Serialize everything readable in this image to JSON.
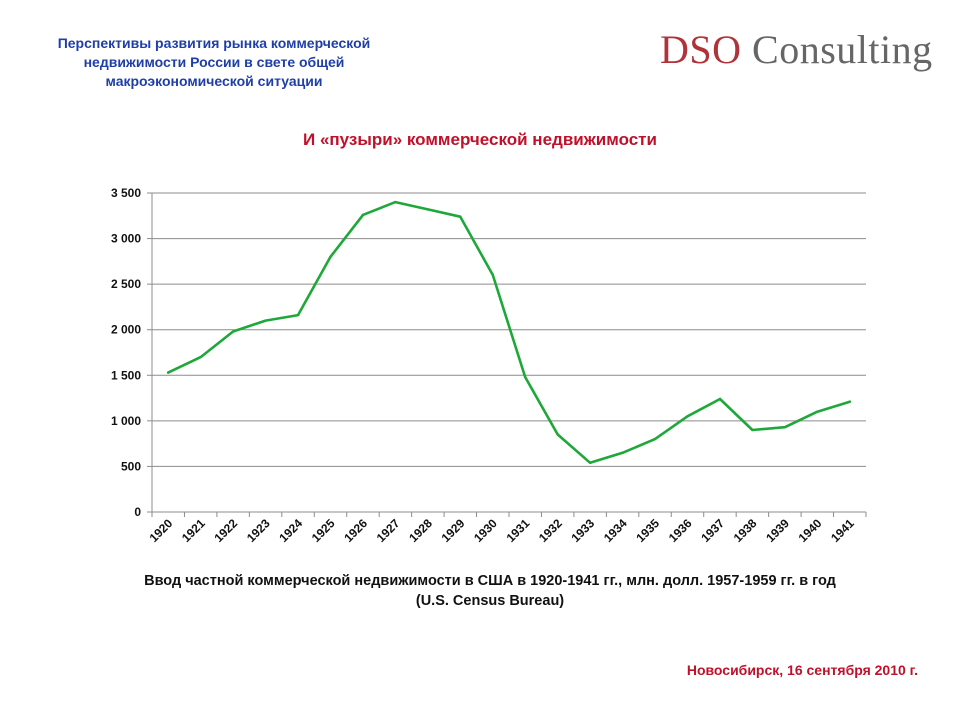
{
  "header": {
    "title_lines": [
      "Перспективы развития рынка коммерческой",
      "недвижимости России в свете общей",
      "макроэкономической ситуации"
    ],
    "logo_primary": "DSO",
    "logo_secondary": "Consulting"
  },
  "chart_data": {
    "type": "line",
    "title": "И «пузыри» коммерческой недвижимости",
    "categories": [
      "1920",
      "1921",
      "1922",
      "1923",
      "1924",
      "1925",
      "1926",
      "1927",
      "1928",
      "1929",
      "1930",
      "1931",
      "1932",
      "1933",
      "1934",
      "1935",
      "1936",
      "1937",
      "1938",
      "1939",
      "1940",
      "1941"
    ],
    "series": [
      {
        "values": [
          1530,
          1700,
          1980,
          2100,
          2160,
          2800,
          3260,
          3400,
          3320,
          3240,
          2600,
          1480,
          850,
          540,
          650,
          800,
          1050,
          1240,
          900,
          930,
          1100,
          1210
        ],
        "color": "#1fa83a"
      }
    ],
    "y_ticks": [
      "0",
      "500",
      "1 000",
      "1 500",
      "2 000",
      "2 500",
      "3 000",
      "3 500"
    ],
    "ylim": [
      0,
      3500
    ],
    "grid": true,
    "legend": "none"
  },
  "caption": {
    "line1": "Ввод частной коммерческой недвижимости в США в 1920-1941 гг., млн. долл. 1957-1959 гг.  в год",
    "line2": "(U.S. Census Bureau)"
  },
  "footer": {
    "text": "Новосибирск, 16 сентября 2010 г."
  }
}
